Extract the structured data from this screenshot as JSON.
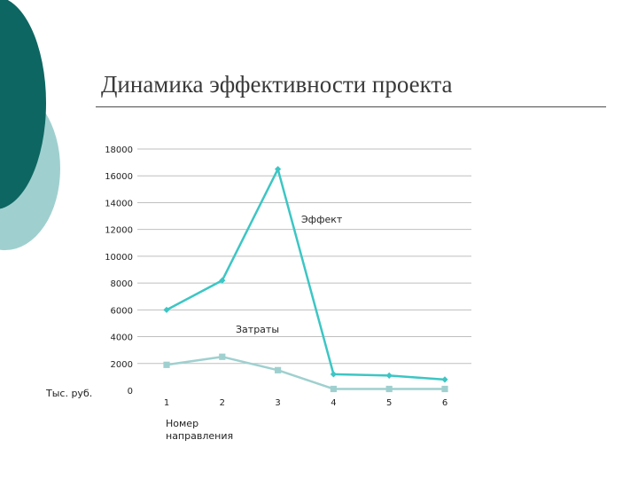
{
  "title": "Динамика эффективности проекта",
  "colors": {
    "deco_dark": "#0d6662",
    "deco_light": "#9fd0cf",
    "series_effect": "#3cc6c4",
    "series_costs": "#9fd0cf",
    "grid": "#bfbfbf",
    "rule": "#4d4d4d"
  },
  "chart_data": {
    "type": "line",
    "title": "",
    "xlabel": "Номер направления",
    "ylabel": "Тыс. руб.",
    "categories": [
      "1",
      "2",
      "3",
      "4",
      "5",
      "6"
    ],
    "ylim": [
      0,
      18000
    ],
    "yticks": [
      0,
      2000,
      4000,
      6000,
      8000,
      10000,
      12000,
      14000,
      16000,
      18000
    ],
    "grid": true,
    "series": [
      {
        "name": "Эффект",
        "marker": "diamond",
        "values": [
          6000,
          8200,
          16500,
          1200,
          1100,
          800
        ]
      },
      {
        "name": "Затраты",
        "marker": "square",
        "values": [
          1900,
          2500,
          1500,
          100,
          100,
          100
        ]
      }
    ]
  }
}
